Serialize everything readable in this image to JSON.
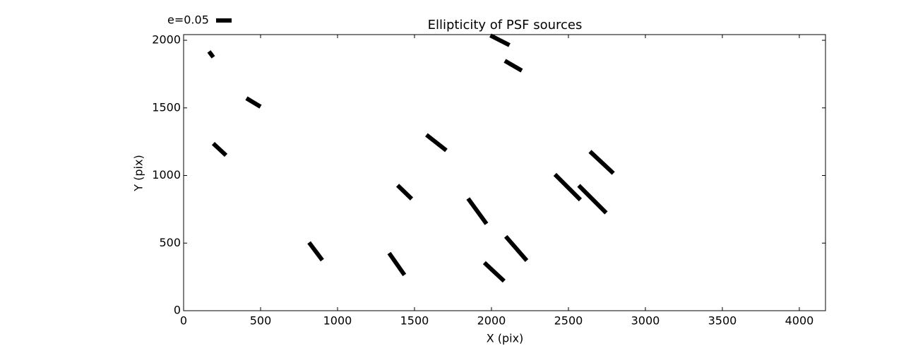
{
  "chart_data": {
    "type": "whisker",
    "title": "Ellipticity of PSF sources",
    "xlabel": "X (pix)",
    "ylabel": "Y (pix)",
    "xlim": [
      0,
      4170
    ],
    "ylim": [
      0,
      2042
    ],
    "xticks": [
      0,
      500,
      1000,
      1500,
      2000,
      2500,
      3000,
      3500,
      4000
    ],
    "yticks": [
      0,
      500,
      1000,
      1500,
      2000
    ],
    "color": "#000000",
    "reference": {
      "label": "e=0.05",
      "value": 0.05
    },
    "x": [
      179,
      2055,
      2142,
      454,
      234,
      1642,
      2716,
      2495,
      2656,
      1436,
      1908,
      2161,
      858,
      1385,
      2018
    ],
    "y": [
      1896,
      2000,
      1812,
      1540,
      1193,
      1243,
      1097,
      914,
      825,
      877,
      736,
      460,
      439,
      345,
      287
    ],
    "e": [
      0.023,
      0.069,
      0.063,
      0.053,
      0.056,
      0.081,
      0.103,
      0.116,
      0.125,
      0.063,
      0.101,
      0.103,
      0.071,
      0.086,
      0.087
    ],
    "angle": [
      -53,
      -27,
      -30,
      -31,
      -43,
      -38,
      -43,
      -45,
      -45,
      -44,
      -54,
      -49,
      -53,
      -55,
      -43
    ]
  }
}
